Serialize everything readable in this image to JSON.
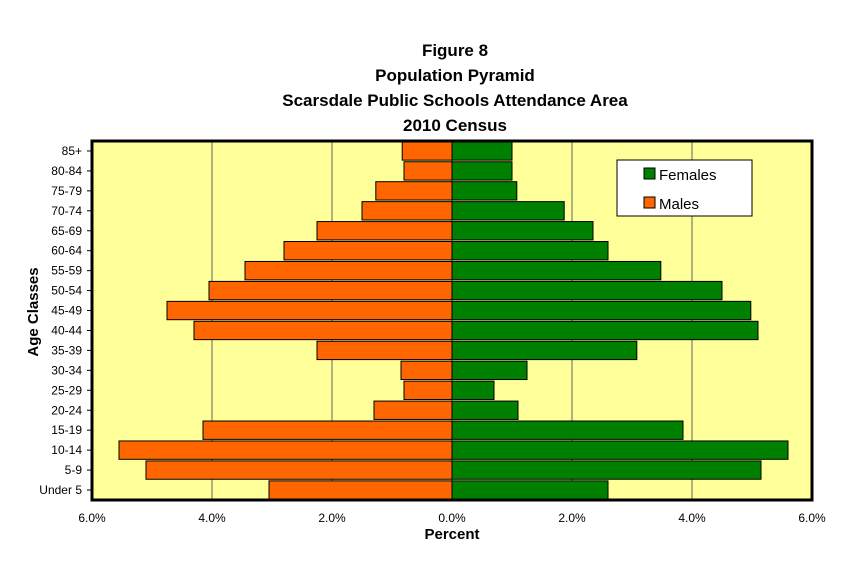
{
  "chart_data": {
    "type": "bar",
    "orientation": "horizontal-pyramid",
    "title": [
      "Figure 8",
      "Population Pyramid",
      "Scarsdale Public Schools Attendance Area",
      "2010 Census"
    ],
    "xlabel": "Percent",
    "ylabel": "Age Classes",
    "xlim": [
      -6,
      6
    ],
    "xticks": [
      -6,
      -4,
      -2,
      0,
      2,
      4,
      6
    ],
    "xtick_labels": [
      "6.0%",
      "4.0%",
      "2.0%",
      "0.0%",
      "2.0%",
      "4.0%",
      "6.0%"
    ],
    "categories": [
      "Under 5",
      "5-9",
      "10-14",
      "15-19",
      "20-24",
      "25-29",
      "30-34",
      "35-39",
      "40-44",
      "45-49",
      "50-54",
      "55-59",
      "60-64",
      "65-69",
      "70-74",
      "75-79",
      "80-84",
      "85+"
    ],
    "series": [
      {
        "name": "Males",
        "color": "#ff6600",
        "side": "left",
        "values": [
          3.05,
          5.1,
          5.55,
          4.15,
          1.3,
          0.8,
          0.85,
          2.25,
          4.3,
          4.75,
          4.05,
          3.45,
          2.8,
          2.25,
          1.5,
          1.27,
          0.8,
          0.83
        ]
      },
      {
        "name": "Females",
        "color": "#008000",
        "side": "right",
        "values": [
          2.6,
          5.15,
          5.6,
          3.85,
          1.1,
          0.7,
          1.25,
          3.08,
          5.1,
          4.98,
          4.5,
          3.48,
          2.6,
          2.35,
          1.87,
          1.08,
          1.0,
          1.0
        ]
      }
    ],
    "legend": {
      "position": "top-right",
      "entries": [
        "Females",
        "Males"
      ]
    },
    "grid": true,
    "background": "#ffff99"
  }
}
